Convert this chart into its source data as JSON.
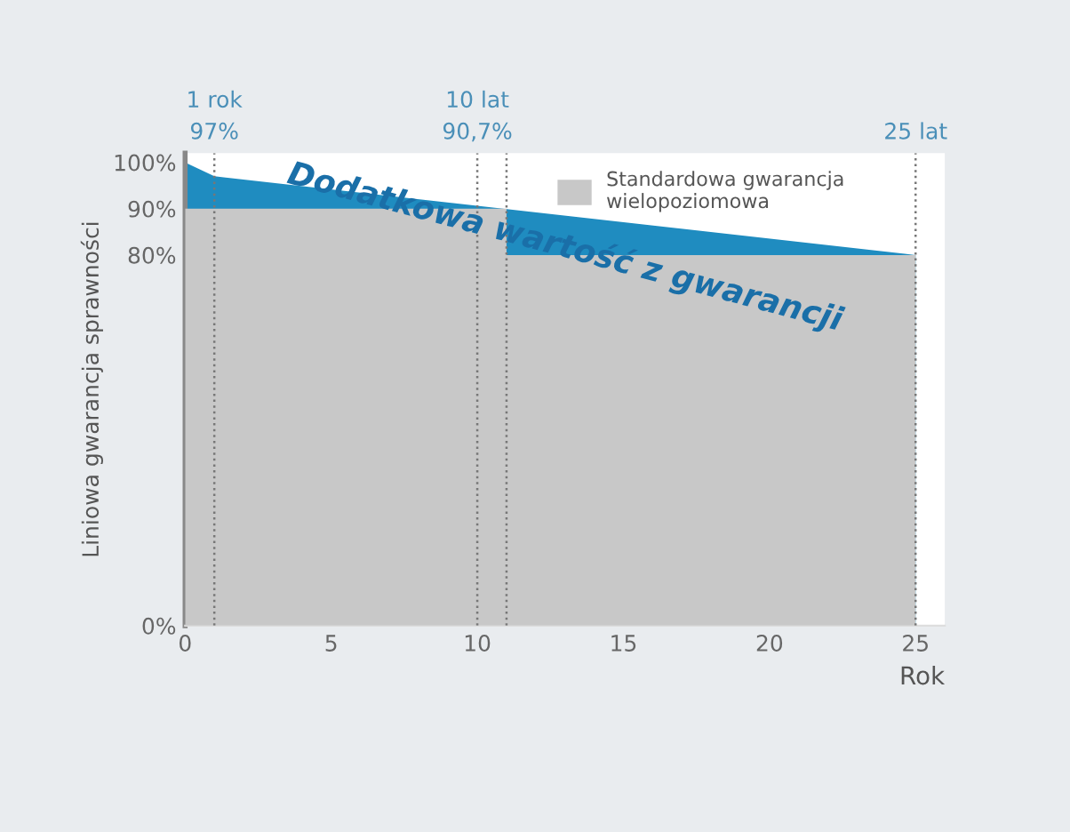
{
  "chart_data": {
    "type": "area",
    "xlabel": "Rok",
    "ylabel": "Liniowa gwarancja sprawności",
    "xlim": [
      0,
      26
    ],
    "xticks": [
      0,
      5,
      10,
      15,
      20,
      25
    ],
    "ylim": [
      0,
      102
    ],
    "yticks": [
      {
        "value": 0,
        "label": "0%"
      },
      {
        "value": 80,
        "label": "80%"
      },
      {
        "value": 90,
        "label": "90%"
      },
      {
        "value": 100,
        "label": "100%"
      }
    ],
    "series": [
      {
        "color": "#1f8cc0",
        "x": [
          0,
          1,
          25
        ],
        "values": [
          100,
          97,
          80
        ]
      },
      {
        "name": "Standardowa gwarancja wielopoziomowa",
        "color": "#c8c8c8",
        "x": [
          0,
          11,
          11,
          25
        ],
        "values": [
          90,
          90,
          80,
          80
        ]
      }
    ],
    "ref_lines": [
      {
        "axis": "x",
        "value": 1,
        "label": "1 rok\n97%",
        "line_style": "dotted"
      },
      {
        "axis": "x",
        "value": 10,
        "label": "10 lat\n90,7%",
        "line_style": "dotted"
      },
      {
        "axis": "x",
        "value": 11,
        "line_style": "dotted"
      },
      {
        "axis": "x",
        "value": 25,
        "label": "25 lat",
        "line_style": "dotted"
      }
    ],
    "annotations": [
      "Dodatkowa wartość z gwarancji"
    ],
    "legend": "top",
    "grid": false
  }
}
